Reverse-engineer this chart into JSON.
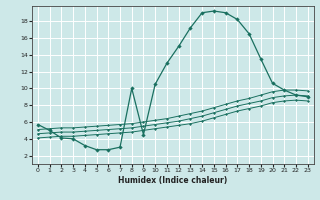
{
  "title": "",
  "xlabel": "Humidex (Indice chaleur)",
  "xlim": [
    -0.5,
    23.5
  ],
  "ylim": [
    1.0,
    19.8
  ],
  "yticks": [
    2,
    4,
    6,
    8,
    10,
    12,
    14,
    16,
    18
  ],
  "xticks": [
    0,
    1,
    2,
    3,
    4,
    5,
    6,
    7,
    8,
    9,
    10,
    11,
    12,
    13,
    14,
    15,
    16,
    17,
    18,
    19,
    20,
    21,
    22,
    23
  ],
  "bg_color": "#cde8e8",
  "grid_color": "#ffffff",
  "line_color": "#1a7060",
  "main_curve": {
    "x": [
      0,
      1,
      2,
      3,
      4,
      5,
      6,
      7,
      8,
      9,
      10,
      11,
      12,
      13,
      14,
      15,
      16,
      17,
      18,
      19,
      20,
      21,
      22,
      23
    ],
    "y": [
      5.7,
      5.0,
      4.1,
      4.0,
      3.2,
      2.7,
      2.7,
      3.0,
      10.0,
      4.5,
      10.5,
      13.0,
      15.0,
      17.2,
      19.0,
      19.2,
      19.0,
      18.2,
      16.5,
      13.5,
      10.6,
      9.8,
      9.2,
      9.0
    ]
  },
  "line1": {
    "x": [
      0,
      1,
      2,
      3,
      4,
      5,
      6,
      7,
      8,
      9,
      10,
      11,
      12,
      13,
      14,
      15,
      16,
      17,
      18,
      19,
      20,
      21,
      22,
      23
    ],
    "y": [
      4.1,
      4.2,
      4.3,
      4.3,
      4.4,
      4.5,
      4.6,
      4.7,
      4.8,
      5.0,
      5.2,
      5.4,
      5.6,
      5.8,
      6.1,
      6.5,
      6.9,
      7.3,
      7.6,
      7.9,
      8.3,
      8.5,
      8.6,
      8.5
    ]
  },
  "line2": {
    "x": [
      0,
      1,
      2,
      3,
      4,
      5,
      6,
      7,
      8,
      9,
      10,
      11,
      12,
      13,
      14,
      15,
      16,
      17,
      18,
      19,
      20,
      21,
      22,
      23
    ],
    "y": [
      4.6,
      4.7,
      4.8,
      4.8,
      4.9,
      5.0,
      5.1,
      5.2,
      5.3,
      5.5,
      5.7,
      5.9,
      6.1,
      6.4,
      6.7,
      7.1,
      7.5,
      7.9,
      8.2,
      8.5,
      8.9,
      9.1,
      9.2,
      9.1
    ]
  },
  "line3": {
    "x": [
      0,
      1,
      2,
      3,
      4,
      5,
      6,
      7,
      8,
      9,
      10,
      11,
      12,
      13,
      14,
      15,
      16,
      17,
      18,
      19,
      20,
      21,
      22,
      23
    ],
    "y": [
      5.1,
      5.2,
      5.3,
      5.3,
      5.4,
      5.5,
      5.6,
      5.7,
      5.8,
      6.0,
      6.2,
      6.4,
      6.7,
      7.0,
      7.3,
      7.7,
      8.1,
      8.5,
      8.8,
      9.2,
      9.6,
      9.8,
      9.8,
      9.7
    ]
  }
}
